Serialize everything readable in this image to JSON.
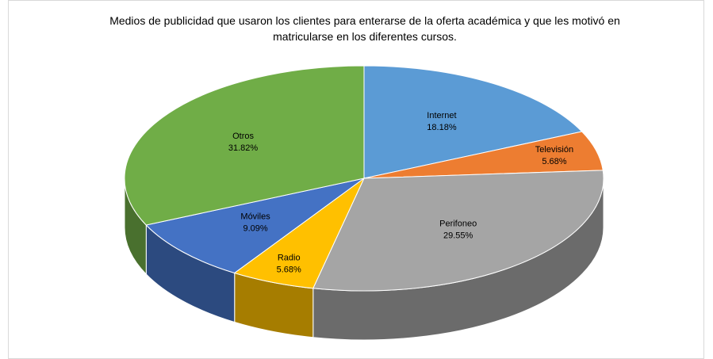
{
  "chart_data": {
    "type": "pie",
    "title": "Medios de publicidad que usaron los clientes para enterarse de la oferta académica y que les motivó en matricularse en los diferentes cursos.",
    "categories": [
      "Internet",
      "Televisión",
      "Perifoneo",
      "Radio",
      "Móviles",
      "Otros"
    ],
    "values": [
      18.18,
      5.68,
      29.55,
      5.68,
      9.09,
      31.82
    ],
    "value_labels": [
      "18.18%",
      "5.68%",
      "29.55%",
      "5.68%",
      "9.09%",
      "31.82%"
    ],
    "colors": [
      "#5b9bd5",
      "#ed7d31",
      "#a5a5a5",
      "#ffc000",
      "#4472c4",
      "#70ad47"
    ]
  }
}
